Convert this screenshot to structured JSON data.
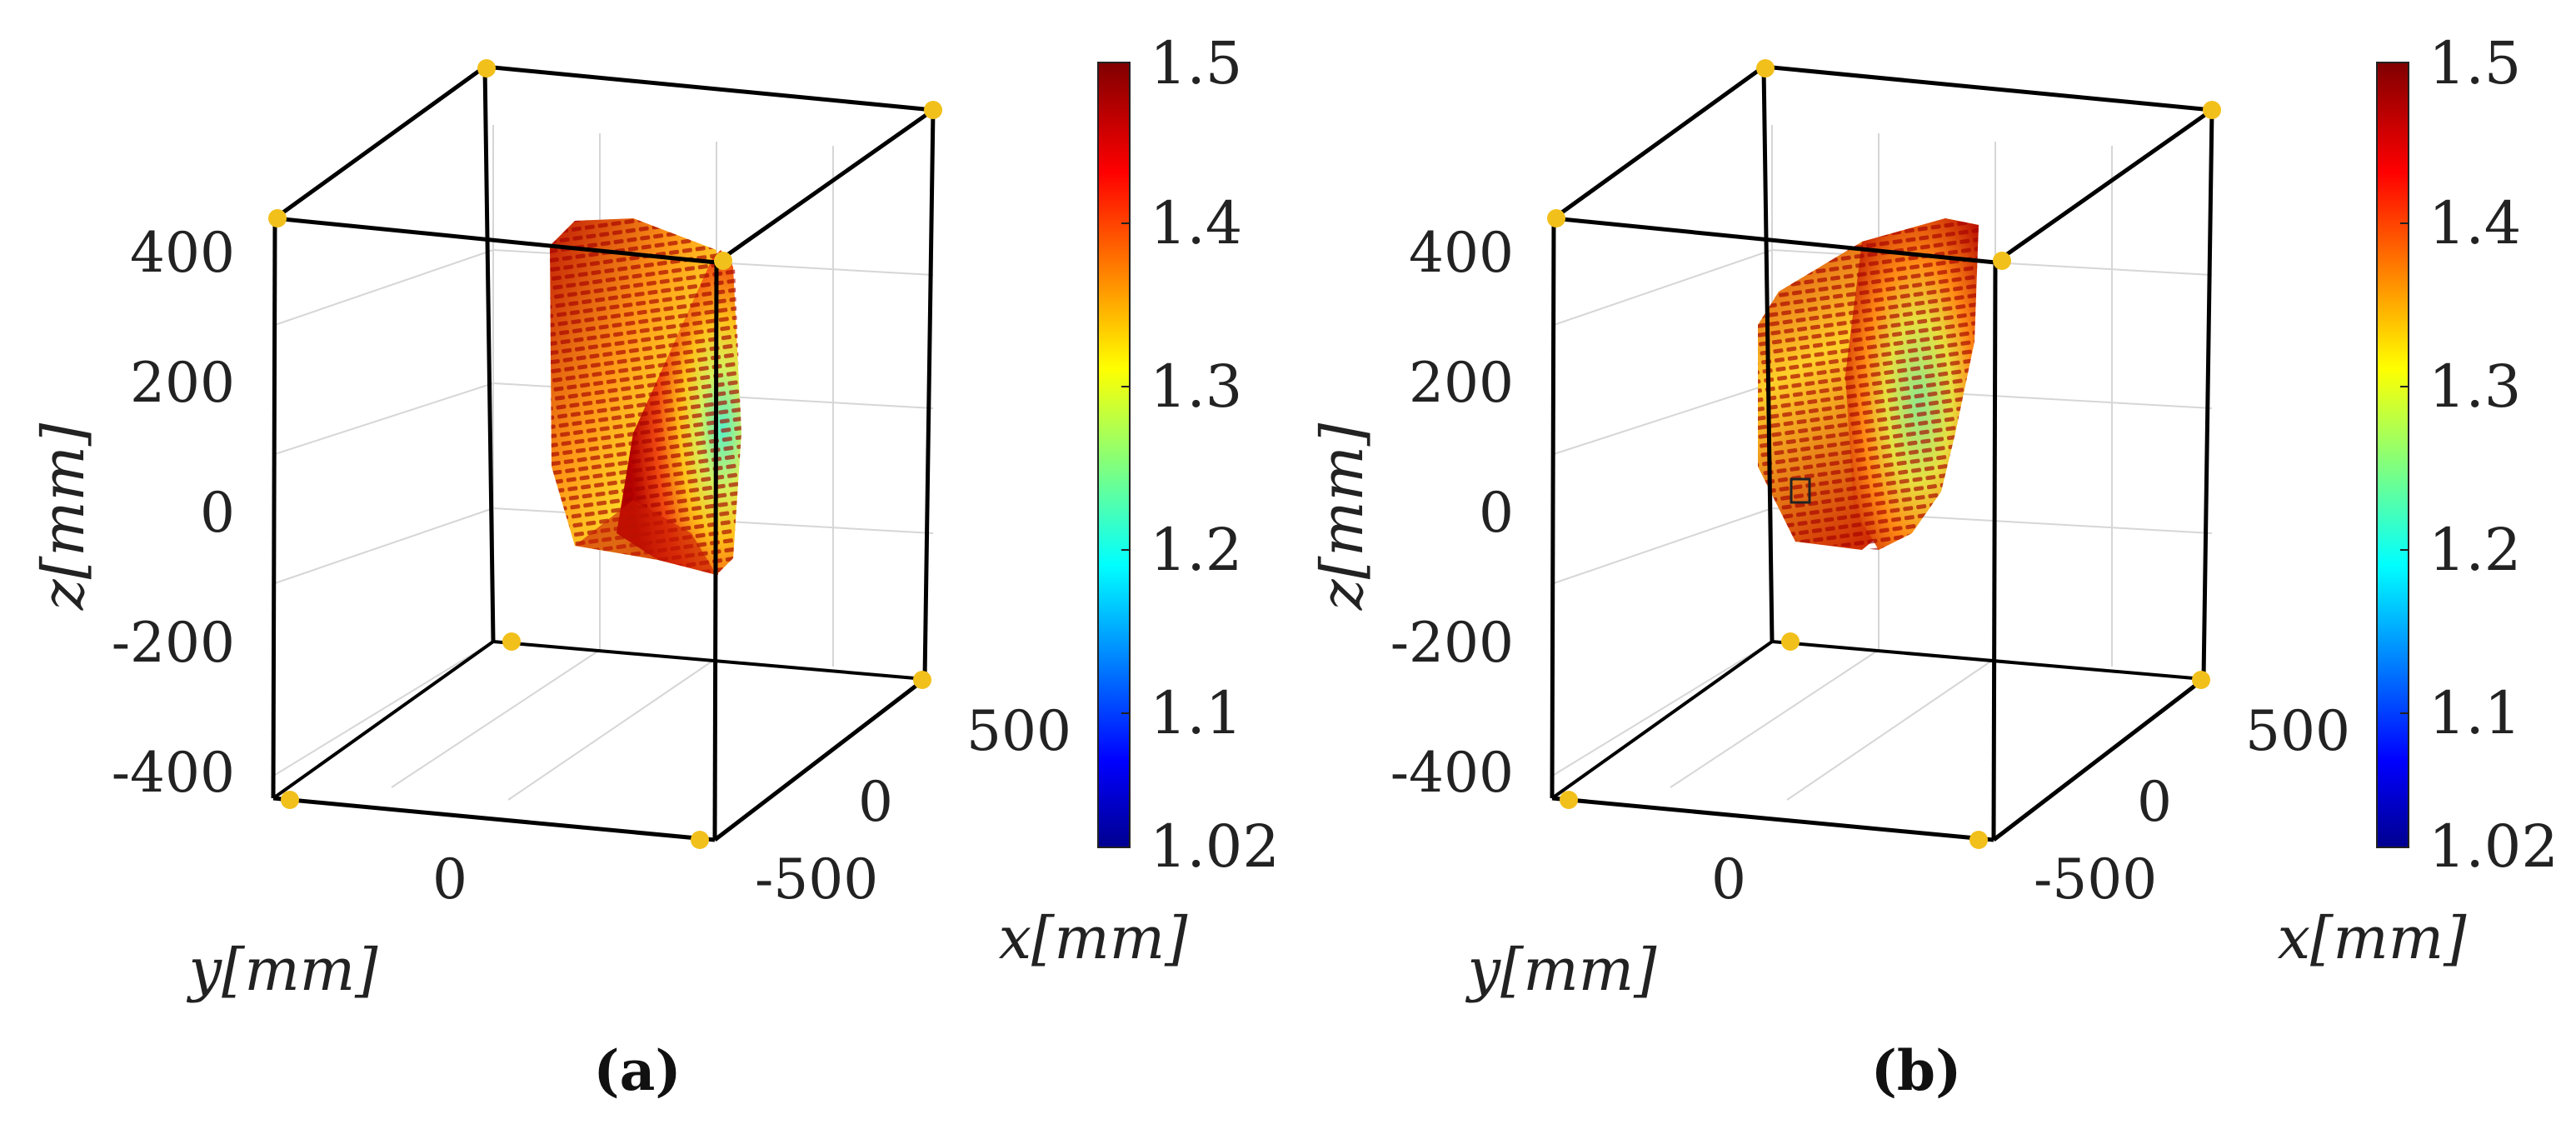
{
  "chart_data": [
    {
      "type": "scatter3d",
      "panel_label": "(a)",
      "xlabel": "x[mm]",
      "ylabel": "y[mm]",
      "zlabel": "z[mm]",
      "x_ticks": [
        "500",
        "0",
        "-500"
      ],
      "y_ticks": [
        "0"
      ],
      "z_ticks": [
        "400",
        "200",
        "0",
        "-200",
        "-400"
      ],
      "xlim": [
        -500,
        500
      ],
      "ylim": [
        -500,
        500
      ],
      "zlim": [
        -450,
        450
      ],
      "box_corner_markers": 8,
      "color_field": {
        "colorbar_range": [
          1.02,
          1.5
        ],
        "colorbar_ticks": [
          "1.5",
          "1.4",
          "1.3",
          "1.2",
          "1.1",
          "1.02"
        ],
        "colormap": "jet",
        "observed_min_region": "near-face center-right, ~1.20",
        "dominant_value": "1.40-1.50"
      },
      "cloud_extent_z": [
        -80,
        420
      ]
    },
    {
      "type": "scatter3d",
      "panel_label": "(b)",
      "xlabel": "x[mm]",
      "ylabel": "y[mm]",
      "zlabel": "z[mm]",
      "x_ticks": [
        "500",
        "0",
        "-500"
      ],
      "y_ticks": [
        "0"
      ],
      "z_ticks": [
        "400",
        "200",
        "0",
        "-200",
        "-400"
      ],
      "xlim": [
        -500,
        500
      ],
      "ylim": [
        -500,
        500
      ],
      "zlim": [
        -450,
        450
      ],
      "box_corner_markers": 8,
      "color_field": {
        "colorbar_range": [
          1.02,
          1.5
        ],
        "colorbar_ticks": [
          "1.5",
          "1.4",
          "1.3",
          "1.2",
          "1.1",
          "1.02"
        ],
        "colormap": "jet",
        "observed_min_region": "face center, ~1.25",
        "dominant_value": "1.35-1.50"
      },
      "cloud_extent_z": [
        -80,
        420
      ]
    }
  ],
  "style": {
    "marker_color": "#f2c01b",
    "box_color": "#000000",
    "grid_color": "#d6d6d6"
  }
}
